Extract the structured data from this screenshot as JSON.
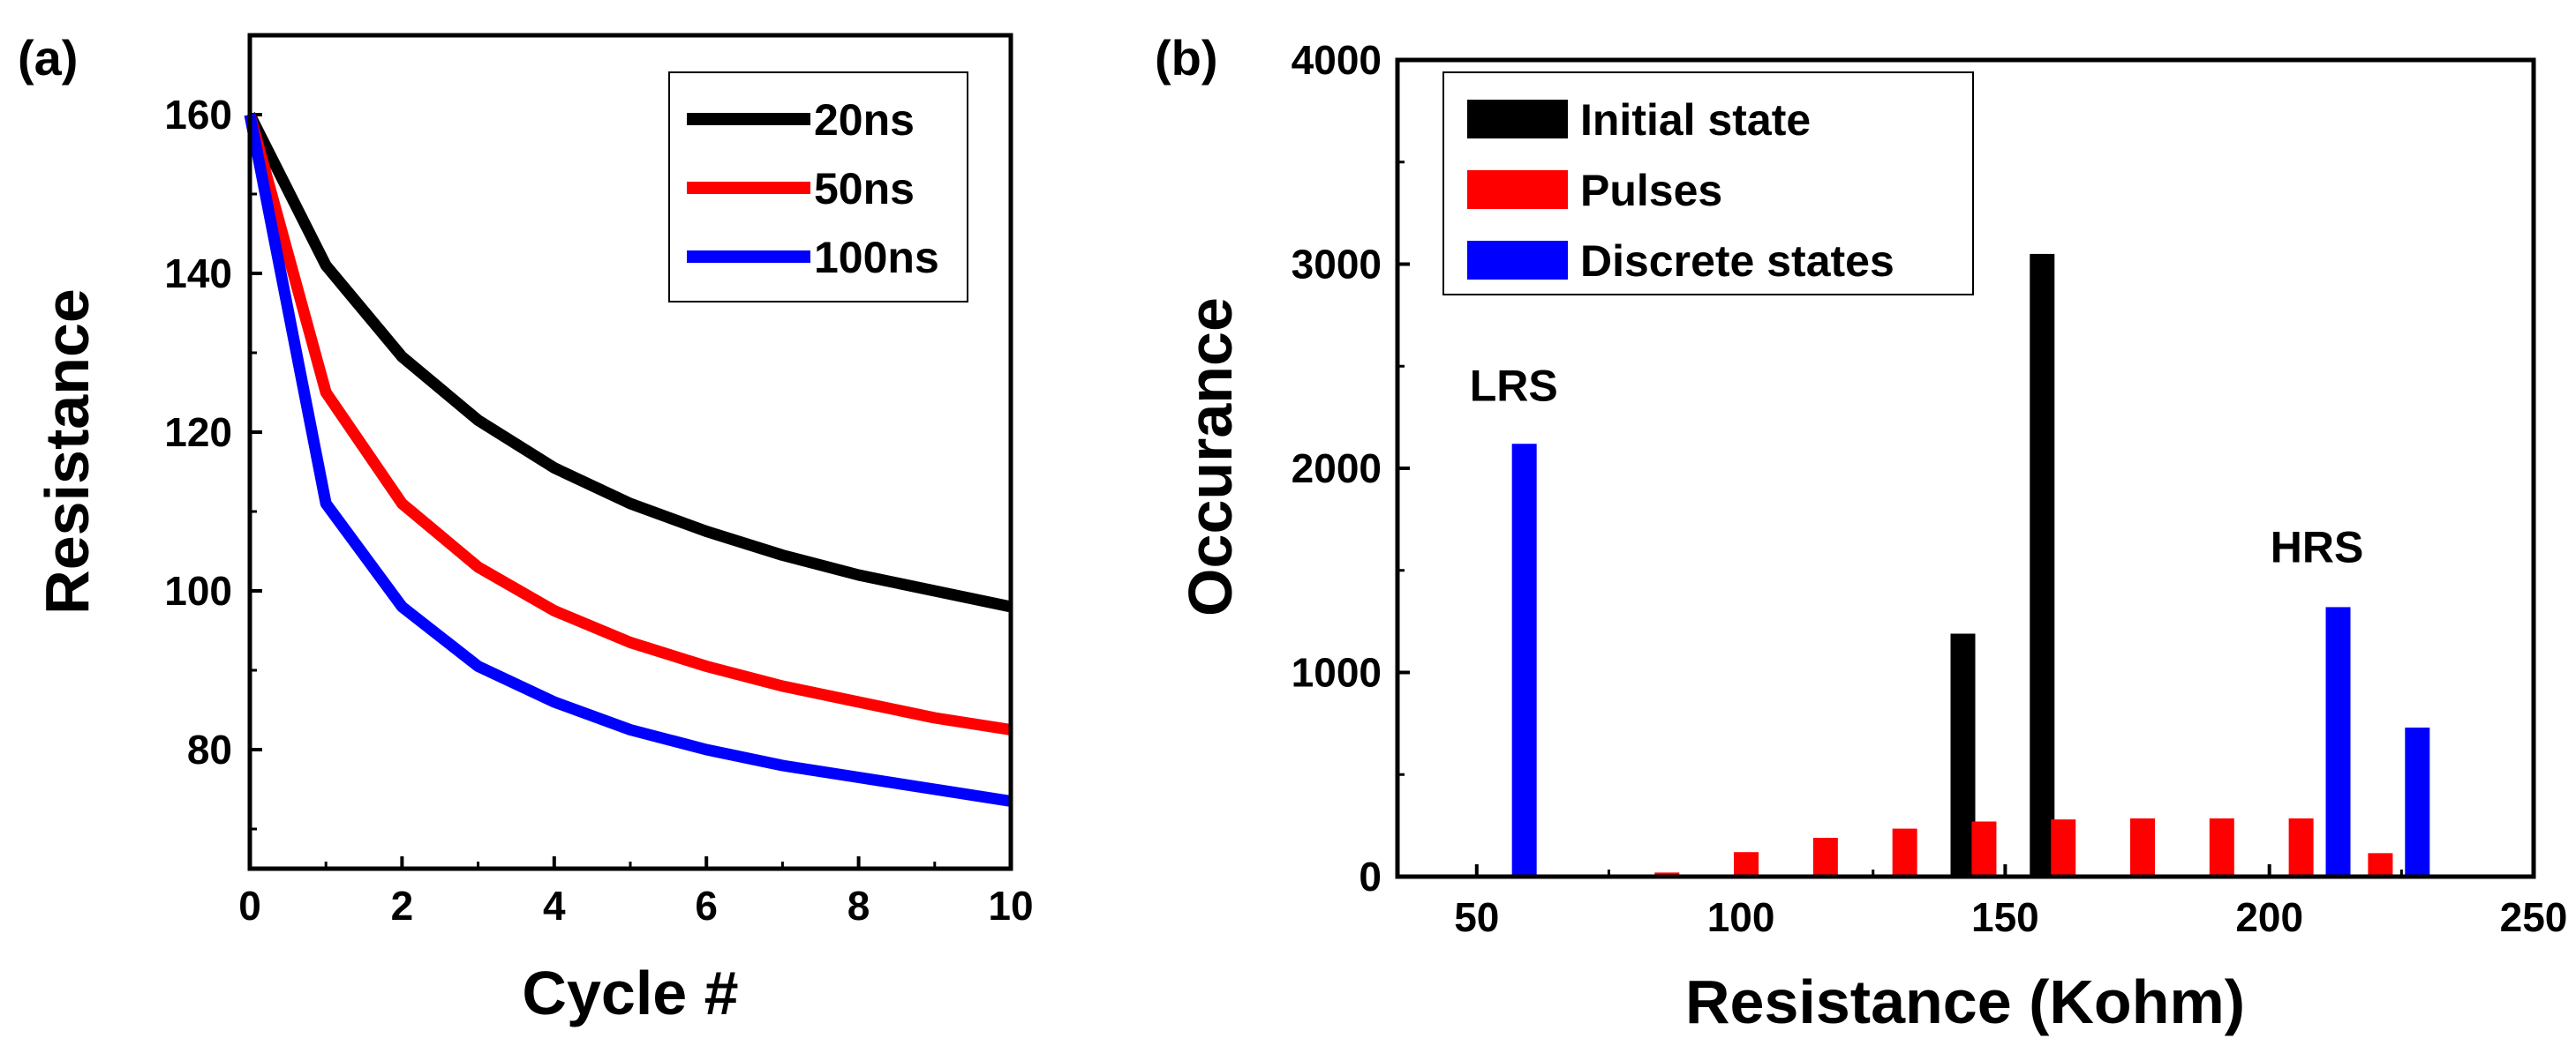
{
  "panels": {
    "a": {
      "label": "(a)"
    },
    "b": {
      "label": "(b)"
    }
  },
  "chart_data": [
    {
      "type": "line",
      "panel": "(a)",
      "xlabel": "Cycle #",
      "ylabel": "Resistance",
      "xlim": [
        0,
        10
      ],
      "ylim": [
        65,
        170
      ],
      "xticks": [
        "0",
        "2",
        "4",
        "6",
        "8",
        "10"
      ],
      "xtick_values": [
        0,
        2,
        4,
        6,
        8,
        10
      ],
      "yticks": [
        "80",
        "100",
        "120",
        "140",
        "160"
      ],
      "ytick_values": [
        80,
        100,
        120,
        140,
        160
      ],
      "legend_position": "top-right",
      "x": [
        0,
        1,
        2,
        3,
        4,
        5,
        6,
        7,
        8,
        9,
        10
      ],
      "series": [
        {
          "name": "20ns",
          "color": "#000000",
          "values": [
            160,
            141,
            129.5,
            121.5,
            115.5,
            111,
            107.5,
            104.5,
            102,
            100,
            98
          ]
        },
        {
          "name": "50ns",
          "color": "#ff0000",
          "values": [
            160,
            125,
            111,
            103,
            97.5,
            93.5,
            90.5,
            88,
            86,
            84,
            82.5
          ]
        },
        {
          "name": "100ns",
          "color": "#0000ff",
          "values": [
            160,
            111,
            98,
            90.5,
            86,
            82.5,
            80,
            78,
            76.5,
            75,
            73.5
          ]
        }
      ]
    },
    {
      "type": "bar",
      "panel": "(b)",
      "xlabel": "Resistance (Kohm)",
      "ylabel": "Occurance",
      "xlim": [
        35,
        250
      ],
      "ylim": [
        0,
        4000
      ],
      "xticks": [
        "50",
        "100",
        "150",
        "200",
        "250"
      ],
      "xtick_values": [
        50,
        100,
        150,
        200,
        250
      ],
      "yticks": [
        "0",
        "1000",
        "2000",
        "3000",
        "4000"
      ],
      "ytick_values": [
        0,
        1000,
        2000,
        3000,
        4000
      ],
      "legend_position": "top-left",
      "series": [
        {
          "name": "Initial state",
          "color": "#000000",
          "points": [
            [
              142,
              1190
            ],
            [
              157,
              3050
            ]
          ]
        },
        {
          "name": "Pulses",
          "color": "#ff0000",
          "points": [
            [
              86,
              20
            ],
            [
              101,
              120
            ],
            [
              116,
              190
            ],
            [
              131,
              235
            ],
            [
              146,
              270
            ],
            [
              161,
              280
            ],
            [
              176,
              285
            ],
            [
              191,
              285
            ],
            [
              206,
              285
            ],
            [
              221,
              115
            ]
          ]
        },
        {
          "name": "Discrete states",
          "color": "#0000ff",
          "points": [
            [
              59,
              2120
            ],
            [
              213,
              1320
            ],
            [
              228,
              730
            ]
          ]
        }
      ],
      "annotations": [
        {
          "text": "LRS",
          "x": 57,
          "y": 2330
        },
        {
          "text": "HRS",
          "x": 209,
          "y": 1540
        }
      ]
    }
  ]
}
